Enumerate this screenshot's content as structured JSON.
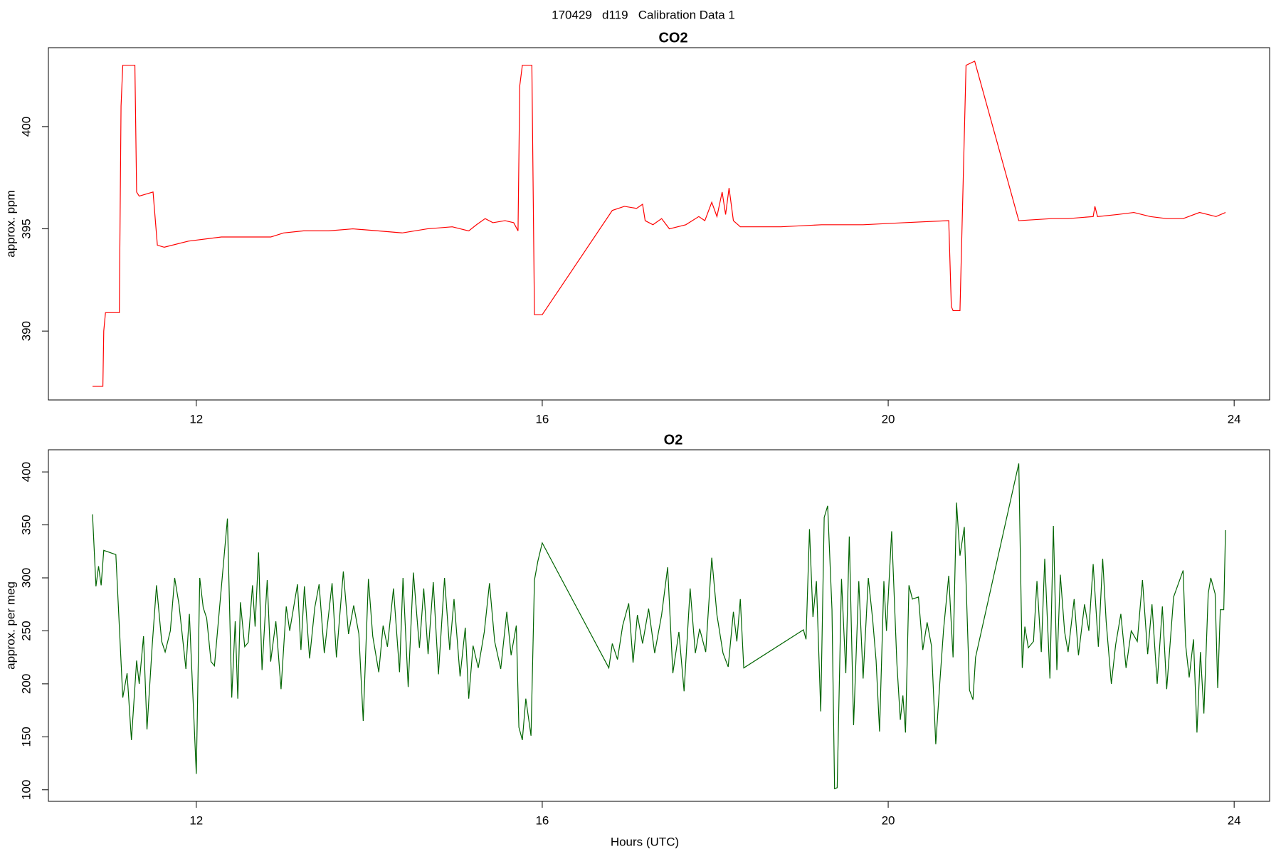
{
  "title": "170429   d119   Calibration Data 1",
  "chart_data": [
    {
      "type": "line",
      "title": "CO2",
      "ylabel": "approx. ppm",
      "color": "#ff0000",
      "xlim": [
        10.29,
        24.41
      ],
      "xticks": [
        12,
        16,
        20,
        24
      ],
      "ylim": [
        386.63,
        403.86
      ],
      "yticks": [
        390,
        395,
        400
      ],
      "x": [
        10.8,
        10.92,
        10.93,
        10.95,
        11.11,
        11.13,
        11.15,
        11.29,
        11.31,
        11.34,
        11.5,
        11.55,
        11.63,
        11.91,
        12.29,
        12.67,
        12.86,
        13.01,
        13.24,
        13.53,
        13.81,
        14.1,
        14.38,
        14.67,
        14.96,
        15.15,
        15.24,
        15.34,
        15.43,
        15.57,
        15.67,
        15.72,
        15.74,
        15.77,
        15.88,
        15.91,
        16.0,
        16.81,
        16.95,
        17.09,
        17.16,
        17.19,
        17.28,
        17.38,
        17.47,
        17.66,
        17.81,
        17.88,
        17.96,
        18.02,
        18.08,
        18.12,
        18.16,
        18.21,
        18.29,
        18.76,
        19.23,
        19.71,
        20.18,
        20.7,
        20.73,
        20.75,
        20.83,
        20.9,
        21.0,
        21.51,
        21.89,
        22.08,
        22.37,
        22.39,
        22.42,
        22.65,
        22.84,
        23.03,
        23.22,
        23.41,
        23.6,
        23.79,
        23.9
      ],
      "values": [
        387.3,
        387.3,
        390.0,
        390.9,
        390.9,
        401.0,
        403.0,
        403.0,
        396.8,
        396.6,
        396.8,
        394.2,
        394.1,
        394.4,
        394.6,
        394.6,
        394.6,
        394.8,
        394.9,
        394.9,
        395.0,
        394.9,
        394.8,
        395.0,
        395.1,
        394.9,
        395.2,
        395.5,
        395.3,
        395.4,
        395.3,
        394.9,
        402.0,
        403.0,
        403.0,
        390.8,
        390.8,
        395.9,
        396.1,
        396.0,
        396.2,
        395.4,
        395.2,
        395.5,
        395.0,
        395.2,
        395.6,
        395.4,
        396.3,
        395.6,
        396.8,
        395.7,
        397.0,
        395.4,
        395.1,
        395.1,
        395.2,
        395.2,
        395.3,
        395.4,
        391.2,
        391.0,
        391.0,
        403.0,
        403.2,
        395.4,
        395.5,
        395.5,
        395.6,
        396.1,
        395.6,
        395.7,
        395.8,
        395.6,
        395.5,
        395.5,
        395.8,
        395.6,
        395.8
      ]
    },
    {
      "type": "line",
      "title": "O2",
      "ylabel": "approx. per meg",
      "xlabel": "Hours (UTC)",
      "color": "#006400",
      "xlim": [
        10.29,
        24.41
      ],
      "xticks": [
        12,
        16,
        20,
        24
      ],
      "ylim": [
        89.1,
        420.9
      ],
      "yticks": [
        100,
        150,
        200,
        250,
        300,
        350,
        400
      ],
      "x": [
        10.8,
        10.84,
        10.87,
        10.9,
        10.93,
        11.07,
        11.15,
        11.2,
        11.25,
        11.31,
        11.34,
        11.39,
        11.43,
        11.49,
        11.54,
        11.6,
        11.64,
        11.7,
        11.75,
        11.8,
        11.88,
        11.92,
        12.0,
        12.04,
        12.08,
        12.12,
        12.17,
        12.21,
        12.36,
        12.41,
        12.45,
        12.48,
        12.51,
        12.56,
        12.6,
        12.65,
        12.68,
        12.72,
        12.76,
        12.82,
        12.86,
        12.92,
        12.98,
        13.04,
        13.08,
        13.17,
        13.21,
        13.25,
        13.31,
        13.37,
        13.42,
        13.48,
        13.57,
        13.62,
        13.7,
        13.76,
        13.82,
        13.88,
        13.93,
        13.99,
        14.04,
        14.11,
        14.16,
        14.21,
        14.28,
        14.35,
        14.39,
        14.45,
        14.51,
        14.58,
        14.63,
        14.68,
        14.74,
        14.8,
        14.87,
        14.93,
        14.98,
        15.05,
        15.11,
        15.15,
        15.2,
        15.26,
        15.33,
        15.39,
        15.45,
        15.52,
        15.59,
        15.64,
        15.7,
        15.73,
        15.77,
        15.81,
        15.87,
        15.91,
        15.95,
        16.0,
        16.77,
        16.81,
        16.87,
        16.93,
        17.0,
        17.05,
        17.1,
        17.16,
        17.23,
        17.3,
        17.38,
        17.45,
        17.51,
        17.58,
        17.64,
        17.71,
        17.77,
        17.82,
        17.89,
        17.96,
        18.02,
        18.09,
        18.15,
        18.21,
        18.25,
        18.29,
        18.33,
        19.02,
        19.05,
        19.09,
        19.13,
        19.17,
        19.22,
        19.26,
        19.3,
        19.35,
        19.38,
        19.41,
        19.46,
        19.51,
        19.55,
        19.6,
        19.66,
        19.71,
        19.77,
        19.82,
        19.86,
        19.9,
        19.95,
        19.98,
        20.04,
        20.1,
        20.14,
        20.17,
        20.2,
        20.24,
        20.28,
        20.35,
        20.4,
        20.45,
        20.5,
        20.55,
        20.6,
        20.64,
        20.7,
        20.75,
        20.79,
        20.83,
        20.88,
        20.94,
        20.98,
        21.01,
        21.51,
        21.55,
        21.58,
        21.62,
        21.68,
        21.72,
        21.77,
        21.81,
        21.87,
        21.91,
        21.95,
        21.99,
        22.04,
        22.08,
        22.15,
        22.2,
        22.27,
        22.32,
        22.37,
        22.43,
        22.48,
        22.52,
        22.58,
        22.63,
        22.69,
        22.75,
        22.81,
        22.88,
        22.94,
        23.0,
        23.05,
        23.11,
        23.17,
        23.22,
        23.3,
        23.41,
        23.44,
        23.48,
        23.53,
        23.57,
        23.61,
        23.65,
        23.7,
        23.73,
        23.78,
        23.81,
        23.84,
        23.88,
        23.9
      ],
      "values": [
        360,
        292,
        311,
        293,
        326,
        322,
        187,
        210,
        147,
        222,
        200,
        245,
        157,
        236,
        293,
        240,
        230,
        250,
        300,
        275,
        214,
        266,
        115,
        300,
        272,
        262,
        221,
        217,
        356,
        187,
        259,
        186,
        277,
        235,
        239,
        293,
        254,
        324,
        213,
        298,
        221,
        259,
        195,
        273,
        250,
        294,
        232,
        292,
        224,
        272,
        294,
        229,
        295,
        225,
        306,
        247,
        274,
        247,
        165,
        299,
        245,
        211,
        255,
        235,
        290,
        211,
        300,
        197,
        305,
        234,
        290,
        228,
        296,
        209,
        300,
        232,
        280,
        207,
        253,
        186,
        236,
        215,
        249,
        295,
        240,
        214,
        268,
        227,
        255,
        159,
        147,
        186,
        151,
        298,
        316,
        333,
        215,
        238,
        223,
        255,
        276,
        220,
        265,
        238,
        271,
        229,
        265,
        310,
        210,
        249,
        193,
        290,
        229,
        252,
        230,
        319,
        265,
        229,
        216,
        268,
        240,
        280,
        215,
        251,
        242,
        346,
        263,
        297,
        174,
        357,
        368,
        270,
        101,
        102,
        299,
        210,
        339,
        161,
        297,
        205,
        300,
        261,
        222,
        155,
        297,
        250,
        344,
        220,
        166,
        189,
        154,
        293,
        280,
        282,
        232,
        258,
        236,
        143,
        205,
        251,
        302,
        225,
        371,
        321,
        348,
        194,
        185,
        225,
        408,
        215,
        254,
        234,
        240,
        297,
        230,
        318,
        205,
        349,
        213,
        303,
        249,
        230,
        280,
        227,
        275,
        250,
        313,
        235,
        318,
        259,
        200,
        237,
        266,
        215,
        250,
        240,
        298,
        228,
        275,
        200,
        273,
        195,
        282,
        307,
        236,
        206,
        242,
        154,
        230,
        172,
        285,
        300,
        285,
        196,
        270,
        270,
        345
      ]
    }
  ]
}
